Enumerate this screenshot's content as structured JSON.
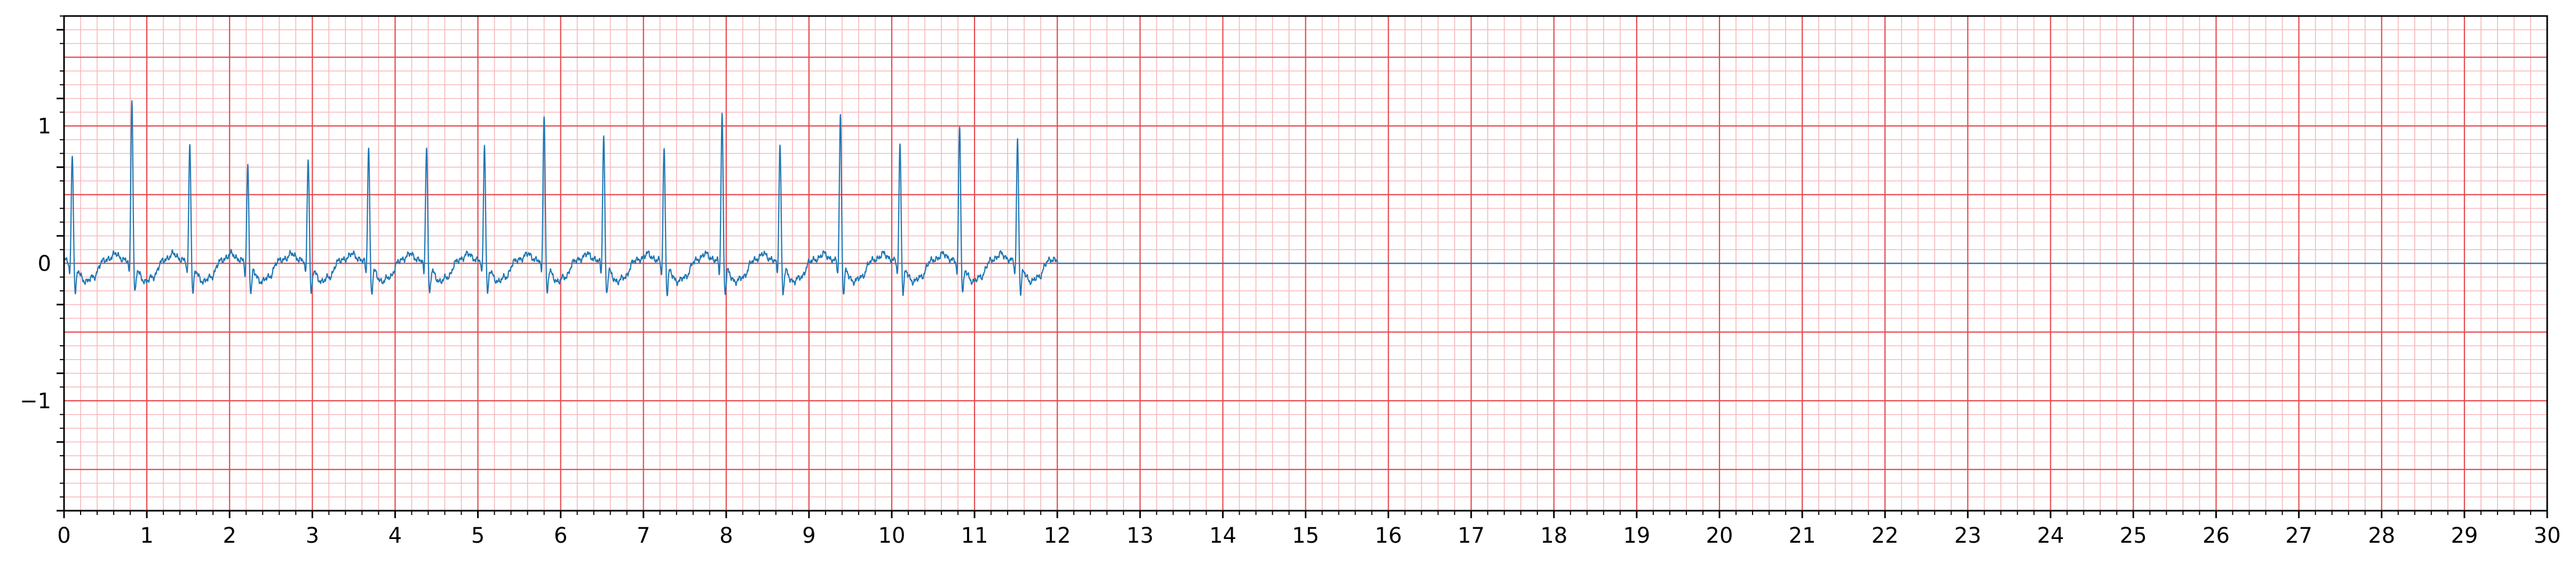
{
  "chart_data": {
    "type": "line",
    "title": "",
    "xlabel": "",
    "ylabel": "",
    "xlim": [
      0,
      30
    ],
    "ylim": [
      -1.8,
      1.8
    ],
    "x_ticks": [
      0,
      1,
      2,
      3,
      4,
      5,
      6,
      7,
      8,
      9,
      10,
      11,
      12,
      13,
      14,
      15,
      16,
      17,
      18,
      19,
      20,
      21,
      22,
      23,
      24,
      25,
      26,
      27,
      28,
      29,
      30
    ],
    "x_tick_labels": [
      "0",
      "1",
      "2",
      "3",
      "4",
      "5",
      "6",
      "7",
      "8",
      "9",
      "10",
      "11",
      "12",
      "13",
      "14",
      "15",
      "16",
      "17",
      "18",
      "19",
      "20",
      "21",
      "22",
      "23",
      "24",
      "25",
      "26",
      "27",
      "28",
      "29",
      "30"
    ],
    "y_ticks": [
      -1,
      0,
      1
    ],
    "y_tick_labels": [
      "−1",
      "0",
      "1"
    ],
    "grid": {
      "major_x_step": 1,
      "minor_x_step": 0.2,
      "major_y_step": 0.5,
      "minor_y_step": 0.1
    },
    "colors": {
      "line": "#1f77b4",
      "major_grid": "#e8484c",
      "minor_grid": "#f7b6b8",
      "axis": "#000000",
      "background": "#ffffff"
    },
    "signal_end_x": 12.0,
    "baseline_after_end": 0,
    "beats": [
      {
        "t": 0.1,
        "r": 0.78
      },
      {
        "t": 0.82,
        "r": 1.2
      },
      {
        "t": 1.52,
        "r": 0.86
      },
      {
        "t": 2.22,
        "r": 0.7
      },
      {
        "t": 2.95,
        "r": 0.76
      },
      {
        "t": 3.68,
        "r": 0.83
      },
      {
        "t": 4.38,
        "r": 0.85
      },
      {
        "t": 5.08,
        "r": 0.85
      },
      {
        "t": 5.8,
        "r": 1.08
      },
      {
        "t": 6.52,
        "r": 0.93
      },
      {
        "t": 7.25,
        "r": 0.82
      },
      {
        "t": 7.95,
        "r": 1.07
      },
      {
        "t": 8.65,
        "r": 0.86
      },
      {
        "t": 9.38,
        "r": 1.06
      },
      {
        "t": 10.1,
        "r": 0.85
      },
      {
        "t": 10.82,
        "r": 1.0
      },
      {
        "t": 11.52,
        "r": 0.88
      }
    ]
  }
}
